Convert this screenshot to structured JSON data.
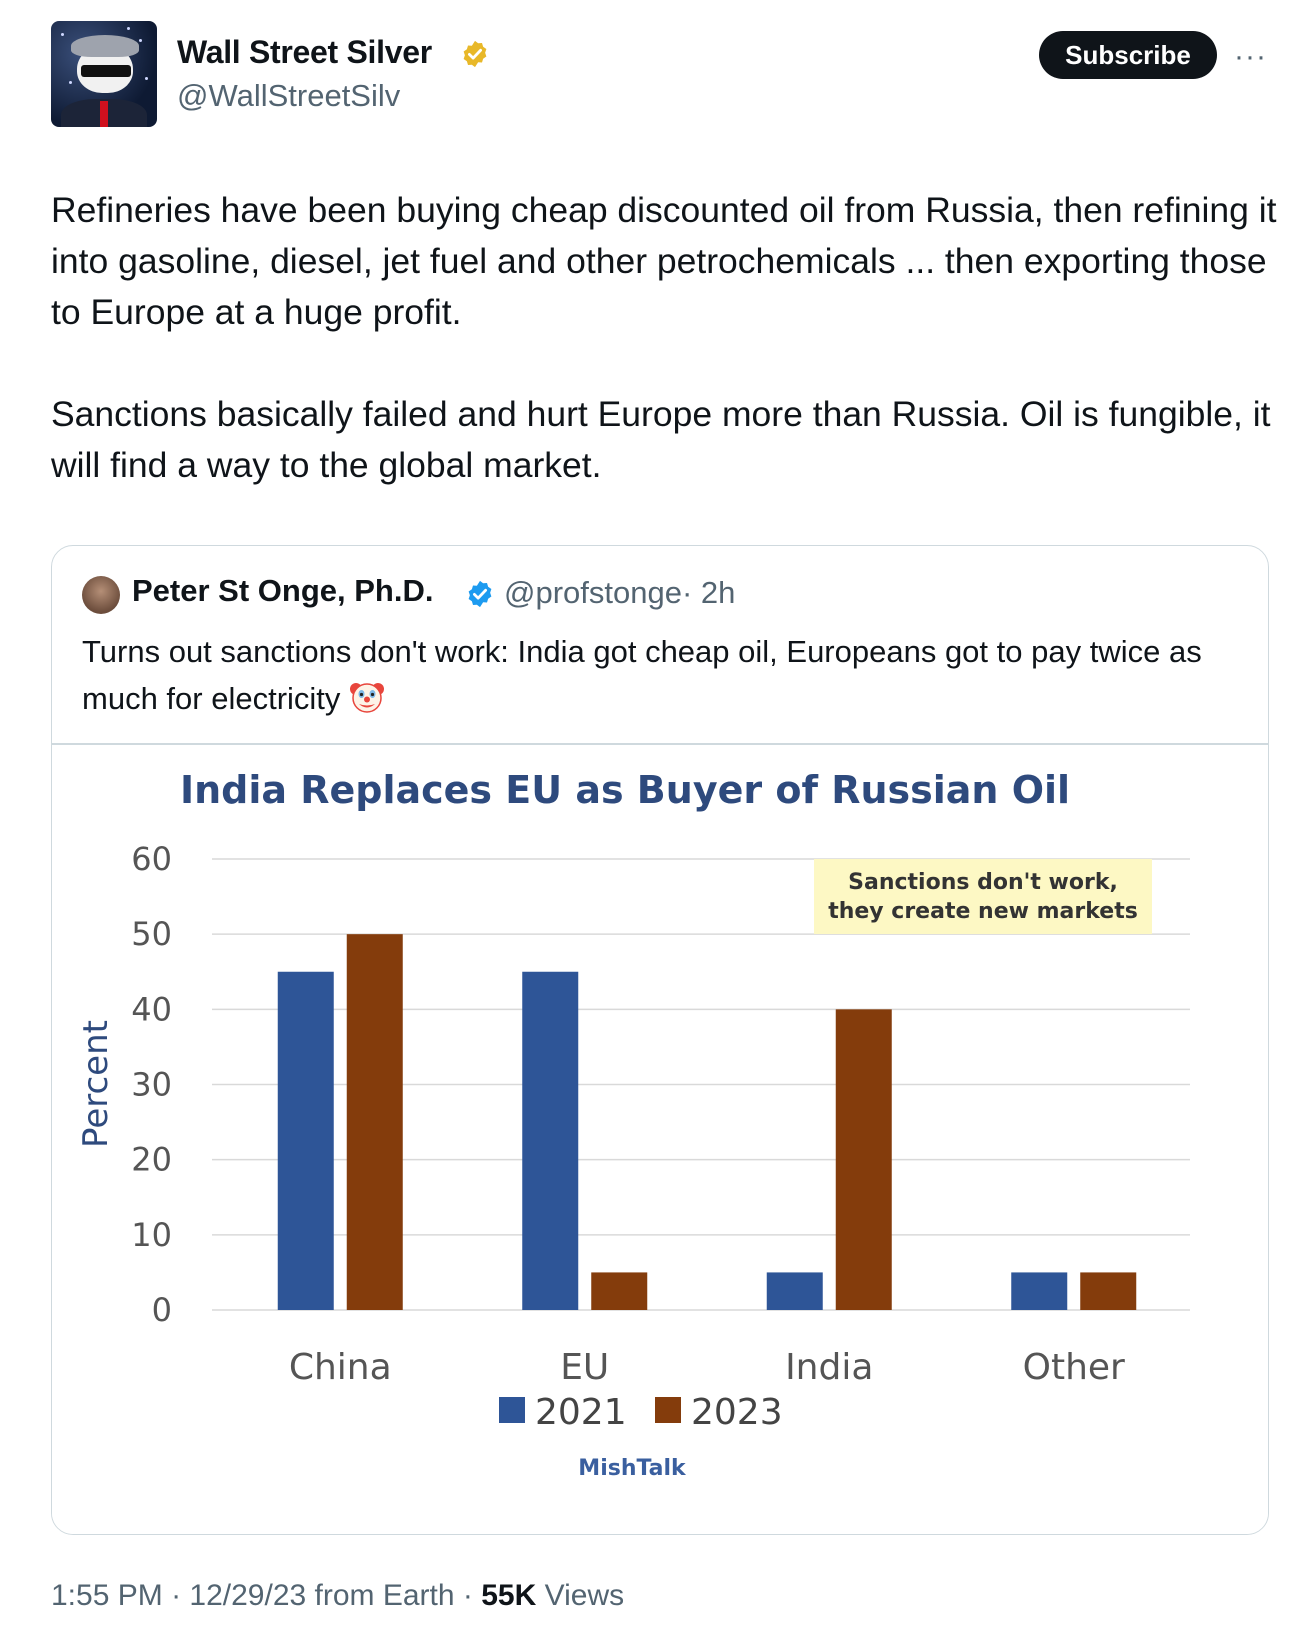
{
  "author": {
    "name": "Wall Street Silver",
    "handle": "@WallStreetSilv",
    "verified_badge": "gold-verified-badge-icon"
  },
  "actions": {
    "subscribe_label": "Subscribe",
    "more_label": "···"
  },
  "post": {
    "paragraphs": [
      "Refineries have been buying cheap discounted oil from Russia, then refining it into gasoline, diesel, jet fuel and other petrochemicals ... then exporting those to Europe at a huge profit.",
      "Sanctions basically failed and hurt Europe more than Russia. Oil is fungible, it will find a way to the global market."
    ]
  },
  "quoted": {
    "name": "Peter St Onge, Ph.D.",
    "handle": "@profstonge",
    "time": "· 2h",
    "text": "Turns out sanctions don't work: India got cheap oil, Europeans got to pay twice as much for electricity",
    "emoji": "clown-face-icon",
    "verified_badge": "blue-verified-badge-icon"
  },
  "chart_data": {
    "type": "bar",
    "title": "India Replaces EU as Buyer of Russian Oil",
    "ylabel": "Percent",
    "xlabel": "",
    "ylim": [
      0,
      60
    ],
    "yticks": [
      "0",
      "10",
      "20",
      "30",
      "40",
      "50",
      "60"
    ],
    "grid": true,
    "categories": [
      "China",
      "EU",
      "India",
      "Other"
    ],
    "series": [
      {
        "name": "2021",
        "values": [
          45,
          45,
          5,
          5
        ],
        "color": "#2e5597"
      },
      {
        "name": "2023",
        "values": [
          50,
          5,
          40,
          5
        ],
        "color": "#843c0c"
      }
    ],
    "legend_position": "bottom",
    "annotation": [
      "Sanctions don't work,",
      "they create new markets"
    ],
    "annotation_bg": "#fdf8c4",
    "title_color": "#2e4a7d",
    "source": "MishTalk"
  },
  "footer": {
    "time": "1:55 PM",
    "date": "12/29/23 from Earth",
    "views_count": "55K",
    "views_label": "Views",
    "sep": " · "
  },
  "colors": {
    "text_primary": "#0f1419",
    "text_secondary": "#536471",
    "border": "#cfd9de",
    "button_bg": "#0f1419"
  }
}
